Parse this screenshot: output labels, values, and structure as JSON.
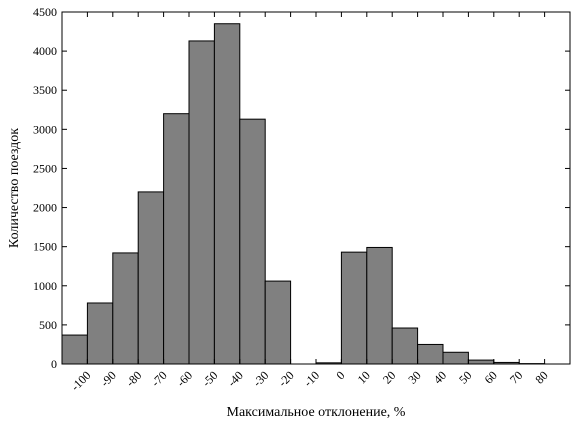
{
  "chart_data": {
    "type": "bar",
    "title": "",
    "xlabel": "Максимальное отклонение, %",
    "ylabel": "Количество поездок",
    "xlim": [
      -110,
      90
    ],
    "ylim": [
      0,
      4500
    ],
    "grid": false,
    "bar_color": "#808080",
    "bar_edge_color": "#000000",
    "bins": [
      {
        "x0": -110,
        "x1": -100,
        "value": 370
      },
      {
        "x0": -100,
        "x1": -90,
        "value": 780
      },
      {
        "x0": -90,
        "x1": -80,
        "value": 1420
      },
      {
        "x0": -80,
        "x1": -70,
        "value": 2200
      },
      {
        "x0": -70,
        "x1": -60,
        "value": 3200
      },
      {
        "x0": -60,
        "x1": -50,
        "value": 4130
      },
      {
        "x0": -50,
        "x1": -40,
        "value": 4350
      },
      {
        "x0": -40,
        "x1": -30,
        "value": 3130
      },
      {
        "x0": -30,
        "x1": -20,
        "value": 1060
      },
      {
        "x0": -20,
        "x1": -10,
        "value": 0
      },
      {
        "x0": -10,
        "x1": 0,
        "value": 15
      },
      {
        "x0": 0,
        "x1": 10,
        "value": 1430
      },
      {
        "x0": 10,
        "x1": 20,
        "value": 1490
      },
      {
        "x0": 20,
        "x1": 30,
        "value": 460
      },
      {
        "x0": 30,
        "x1": 40,
        "value": 250
      },
      {
        "x0": 40,
        "x1": 50,
        "value": 150
      },
      {
        "x0": 50,
        "x1": 60,
        "value": 50
      },
      {
        "x0": 60,
        "x1": 70,
        "value": 20
      },
      {
        "x0": 70,
        "x1": 80,
        "value": 5
      }
    ],
    "x_ticks": [
      {
        "value": -100,
        "label": "-100"
      },
      {
        "value": -90,
        "label": "-90"
      },
      {
        "value": -80,
        "label": "-80"
      },
      {
        "value": -70,
        "label": "-70"
      },
      {
        "value": -60,
        "label": "-60"
      },
      {
        "value": -50,
        "label": "-50"
      },
      {
        "value": -40,
        "label": "-40"
      },
      {
        "value": -30,
        "label": "-30"
      },
      {
        "value": -20,
        "label": "-20"
      },
      {
        "value": -10,
        "label": "-10"
      },
      {
        "value": 0,
        "label": "0"
      },
      {
        "value": 10,
        "label": "10"
      },
      {
        "value": 20,
        "label": "20"
      },
      {
        "value": 30,
        "label": "30"
      },
      {
        "value": 40,
        "label": "40"
      },
      {
        "value": 50,
        "label": "50"
      },
      {
        "value": 60,
        "label": "60"
      },
      {
        "value": 70,
        "label": "70"
      },
      {
        "value": 80,
        "label": "80"
      }
    ],
    "y_ticks": [
      {
        "value": 0,
        "label": "0"
      },
      {
        "value": 500,
        "label": "500"
      },
      {
        "value": 1000,
        "label": "1000"
      },
      {
        "value": 1500,
        "label": "1500"
      },
      {
        "value": 2000,
        "label": "2000"
      },
      {
        "value": 2500,
        "label": "2500"
      },
      {
        "value": 3000,
        "label": "3000"
      },
      {
        "value": 3500,
        "label": "3500"
      },
      {
        "value": 4000,
        "label": "4000"
      },
      {
        "value": 4500,
        "label": "4500"
      }
    ]
  }
}
